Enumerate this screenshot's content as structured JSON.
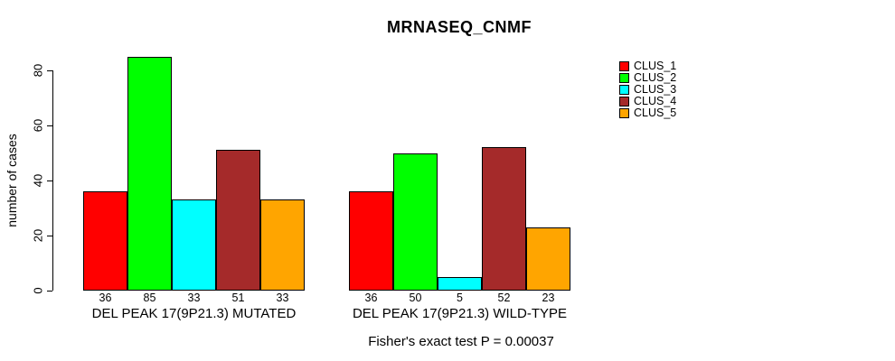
{
  "chart_data": {
    "type": "bar",
    "title": "MRNASEQ_CNMF",
    "ylabel": "number of cases",
    "xlabel": "",
    "ylim": [
      0,
      85
    ],
    "yticks": [
      0,
      20,
      40,
      60,
      80
    ],
    "grid": false,
    "legend_position": "right-outside-top",
    "categories": [
      "DEL PEAK 17(9P21.3) MUTATED",
      "DEL PEAK 17(9P21.3) WILD-TYPE"
    ],
    "series": [
      {
        "name": "CLUS_1",
        "color": "#FF0000",
        "values": [
          36,
          36
        ]
      },
      {
        "name": "CLUS_2",
        "color": "#00FF00",
        "values": [
          85,
          50
        ]
      },
      {
        "name": "CLUS_3",
        "color": "#00FFFF",
        "values": [
          33,
          5
        ]
      },
      {
        "name": "CLUS_4",
        "color": "#A52A2A",
        "values": [
          51,
          52
        ]
      },
      {
        "name": "CLUS_5",
        "color": "#FFA500",
        "values": [
          33,
          23
        ]
      }
    ],
    "show_value_labels": true,
    "footnote": "Fisher's exact test P = 0.00037"
  },
  "colors": {
    "background": "#FFFFFF",
    "axis": "#000000",
    "text": "#000000"
  }
}
